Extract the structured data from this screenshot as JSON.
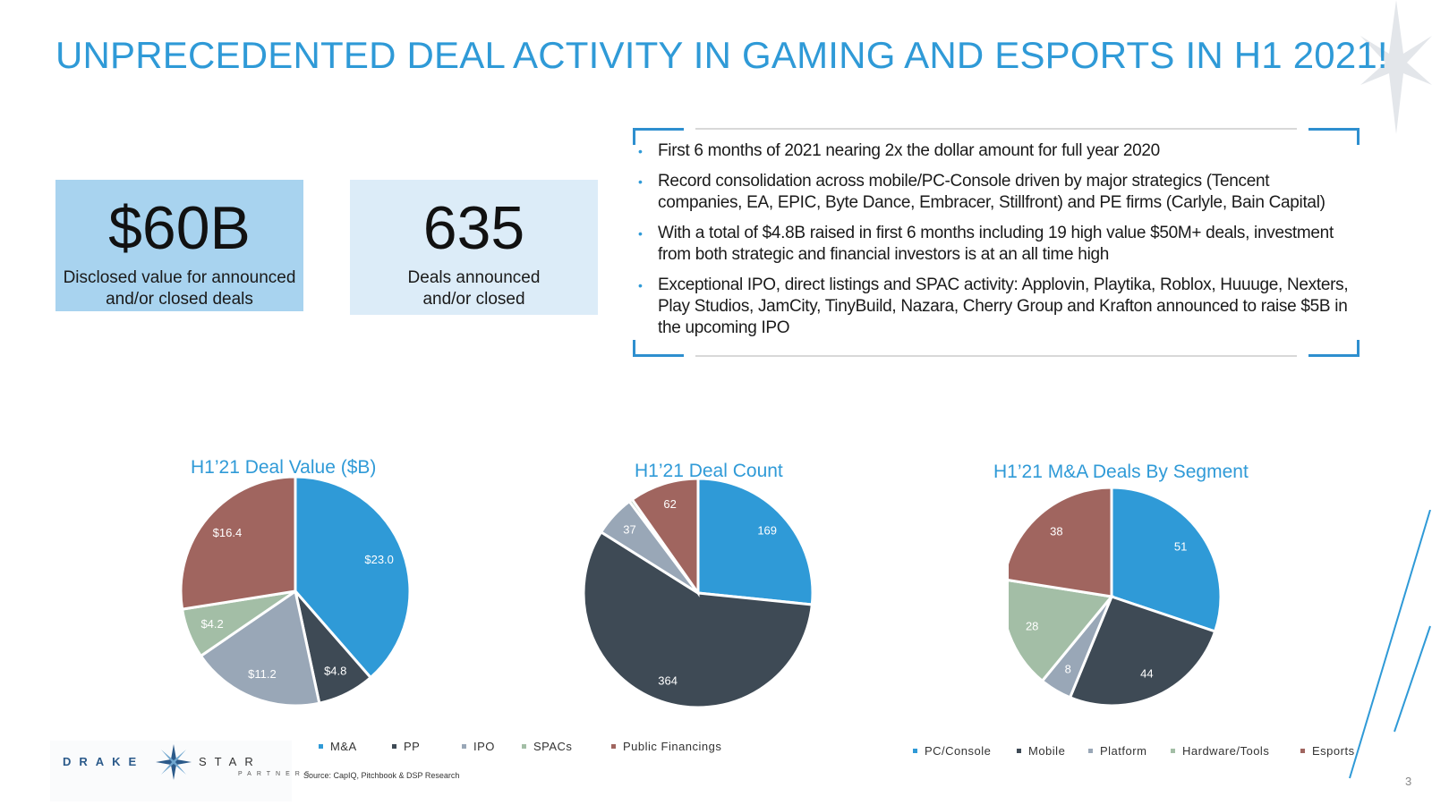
{
  "title": "UNPRECEDENTED DEAL ACTIVITY IN GAMING AND ESPORTS IN H1 2021!",
  "kpis": [
    {
      "value": "$60B",
      "label": "Disclosed value for announced and/or closed deals"
    },
    {
      "value": "635",
      "label": "Deals announced and/or closed"
    }
  ],
  "bullets": [
    "First 6 months of 2021 nearing 2x the dollar amount for full year 2020",
    "Record consolidation across mobile/PC-Console driven by major strategics (Tencent companies, EA, EPIC, Byte Dance, Embracer, Stillfront) and PE firms (Carlyle, Bain Capital)",
    "With a total of $4.8B raised in first 6 months including 19 high value $50M+ deals, investment from both strategic and financial investors is at an all time high",
    "Exceptional IPO, direct listings and SPAC activity: Applovin, Playtika, Roblox, Huuuge, Nexters, Play Studios, JamCity, TinyBuild, Nazara, Cherry Group and Krafton announced to raise $5B in the upcoming IPO"
  ],
  "chart_data": [
    {
      "type": "pie",
      "title": "H1’21 Deal Value ($B)",
      "categories": [
        "M&A",
        "PP",
        "IPO",
        "SPACs",
        "Public Financings"
      ],
      "values": [
        23.0,
        4.8,
        11.2,
        4.2,
        16.4
      ],
      "data_labels": [
        "$23.0",
        "$4.8",
        "$11.2",
        "$4.2",
        "$16.4"
      ],
      "colors": [
        "#2f9ad7",
        "#3e4a55",
        "#99a7b7",
        "#a3bea6",
        "#a0655f"
      ],
      "legend_position": "bottom"
    },
    {
      "type": "pie",
      "title": "H1’21 Deal Count",
      "categories": [
        "M&A",
        "PP",
        "IPO",
        "SPACs",
        "Public Financings"
      ],
      "values": [
        169,
        364,
        37,
        3,
        62
      ],
      "data_labels": [
        "169",
        "364",
        "37",
        "",
        "62"
      ],
      "colors": [
        "#2f9ad7",
        "#3e4a55",
        "#99a7b7",
        "#a3bea6",
        "#a0655f"
      ],
      "legend_position": "bottom"
    },
    {
      "type": "pie",
      "title": "H1’21 M&A Deals By Segment",
      "categories": [
        "PC/Console",
        "Mobile",
        "Platform",
        "Hardware/Tools",
        "Esports"
      ],
      "values": [
        51,
        44,
        8,
        28,
        38
      ],
      "data_labels": [
        "51",
        "44",
        "8",
        "28",
        "38"
      ],
      "colors": [
        "#2f9ad7",
        "#3e4a55",
        "#99a7b7",
        "#a3bea6",
        "#a0655f"
      ],
      "legend_position": "bottom"
    }
  ],
  "source": "Source: CapIQ, Pitchbook & DSP Research",
  "logo": {
    "left": "DRAKE",
    "right": "STAR",
    "sub": "PARTNERS"
  },
  "page_number": "3"
}
